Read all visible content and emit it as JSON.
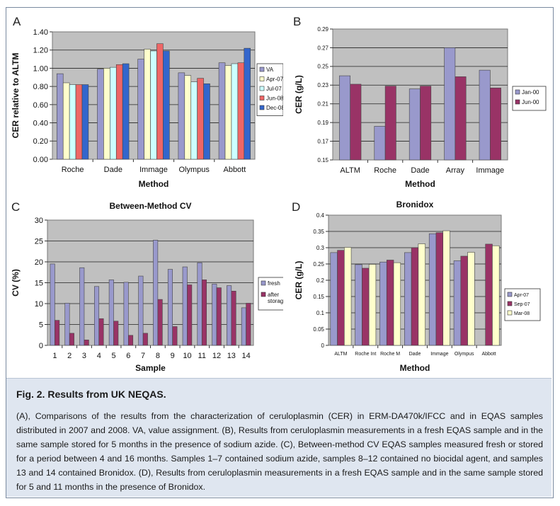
{
  "chart_data": [
    {
      "id": "A",
      "type": "bar",
      "panel_letter": "A",
      "title": "",
      "xlabel": "Method",
      "ylabel": "CER relative to ALTM",
      "ylim": [
        0,
        1.4
      ],
      "yticks": [
        "0.00",
        "0.20",
        "0.40",
        "0.60",
        "0.80",
        "1.00",
        "1.20",
        "1.40"
      ],
      "categories": [
        "Roche",
        "Dade",
        "Immage",
        "Olympus",
        "Abbott"
      ],
      "legend_position": "right",
      "series": [
        {
          "name": "VA",
          "color": "#9999cc",
          "values": [
            0.94,
            0.99,
            1.1,
            0.95,
            1.06
          ]
        },
        {
          "name": "Apr-07",
          "color": "#ffffcc",
          "values": [
            0.84,
            1.0,
            1.21,
            0.92,
            1.03
          ]
        },
        {
          "name": "Jul-07",
          "color": "#ccffff",
          "values": [
            0.82,
            1.01,
            1.19,
            0.85,
            1.05
          ]
        },
        {
          "name": "Jun-08",
          "color": "#ee6666",
          "values": [
            0.82,
            1.04,
            1.27,
            0.89,
            1.06
          ]
        },
        {
          "name": "Dec-08",
          "color": "#3366cc",
          "values": [
            0.82,
            1.05,
            1.19,
            0.83,
            1.22
          ]
        }
      ]
    },
    {
      "id": "B",
      "type": "bar",
      "panel_letter": "B",
      "title": "",
      "xlabel": "Method",
      "ylabel": "CER (g/L)",
      "ylim": [
        0.15,
        0.29
      ],
      "yticks": [
        "0.15",
        "0.17",
        "0.19",
        "0.21",
        "0.23",
        "0.25",
        "0.27",
        "0.29"
      ],
      "categories": [
        "ALTM",
        "Roche",
        "Dade",
        "Array",
        "Immage"
      ],
      "legend_position": "right",
      "series": [
        {
          "name": "Jan-00",
          "color": "#9999cc",
          "values": [
            0.24,
            0.186,
            0.226,
            0.27,
            0.246
          ]
        },
        {
          "name": "Jun-00",
          "color": "#993366",
          "values": [
            0.231,
            0.229,
            0.229,
            0.239,
            0.227
          ]
        }
      ]
    },
    {
      "id": "C",
      "type": "bar",
      "panel_letter": "C",
      "title": "Between-Method CV",
      "xlabel": "Sample",
      "ylabel": "CV (%)",
      "ylim": [
        0,
        30
      ],
      "yticks": [
        "0",
        "5",
        "10",
        "15",
        "20",
        "25",
        "30"
      ],
      "categories": [
        "1",
        "2",
        "3",
        "4",
        "5",
        "6",
        "7",
        "8",
        "9",
        "10",
        "11",
        "12",
        "13",
        "14"
      ],
      "legend_position": "right",
      "series": [
        {
          "name": "fresh",
          "color": "#9999cc",
          "values": [
            19.5,
            10.1,
            18.6,
            14.1,
            15.7,
            15.1,
            16.6,
            25.2,
            18.2,
            18.8,
            19.8,
            14.7,
            14.3,
            9.0
          ]
        },
        {
          "name": "after storage",
          "color": "#993366",
          "values": [
            6.0,
            2.9,
            1.3,
            6.4,
            5.8,
            2.4,
            2.9,
            11.0,
            4.5,
            14.5,
            15.7,
            13.8,
            13.0,
            10.1
          ]
        }
      ]
    },
    {
      "id": "D",
      "type": "bar",
      "panel_letter": "D",
      "title": "Bronidox",
      "xlabel": "Method",
      "ylabel": "CER (g/L)",
      "ylim": [
        0,
        0.4
      ],
      "yticks": [
        "0",
        "0.05",
        "0.1",
        "0.15",
        "0.2",
        "0.25",
        "0.3",
        "0.35",
        "0.4"
      ],
      "categories": [
        "ALTM",
        "Roche Int",
        "Roche M",
        "Dade",
        "Immage",
        "Olympus",
        "Abbott"
      ],
      "legend_position": "right",
      "series": [
        {
          "name": "Apr-07",
          "color": "#9999cc",
          "values": [
            0.285,
            0.248,
            0.256,
            0.285,
            0.343,
            0.26,
            0
          ]
        },
        {
          "name": "Sep-07",
          "color": "#993366",
          "values": [
            0.292,
            0.237,
            0.262,
            0.3,
            0.346,
            0.274,
            0.311
          ]
        },
        {
          "name": "Mar-08",
          "color": "#ffffcc",
          "values": [
            0.301,
            0.249,
            0.254,
            0.312,
            0.352,
            0.286,
            0.306
          ]
        }
      ]
    }
  ],
  "caption": {
    "title": "Fig. 2. Results from UK NEQAS.",
    "text": "(A), Comparisons of the results from the characterization of ceruloplasmin (CER) in ERM-DA470k/IFCC and in EQAS samples distributed in 2007 and 2008. VA, value assignment. (B), Results from ceruloplasmin measurements in a fresh EQAS sample and in the same sample stored for 5 months in the presence of sodium azide. (C), Between-method CV EQAS samples measured fresh or stored for a period between 4 and 16 months. Samples 1–7 contained sodium azide, samples 8–12 contained no biocidal agent, and samples 13 and 14 contained Bronidox. (D), Results from ceruloplasmin measurements in a fresh EQAS sample and in the same sample stored for 5 and 11 months in the presence of Bronidox."
  }
}
